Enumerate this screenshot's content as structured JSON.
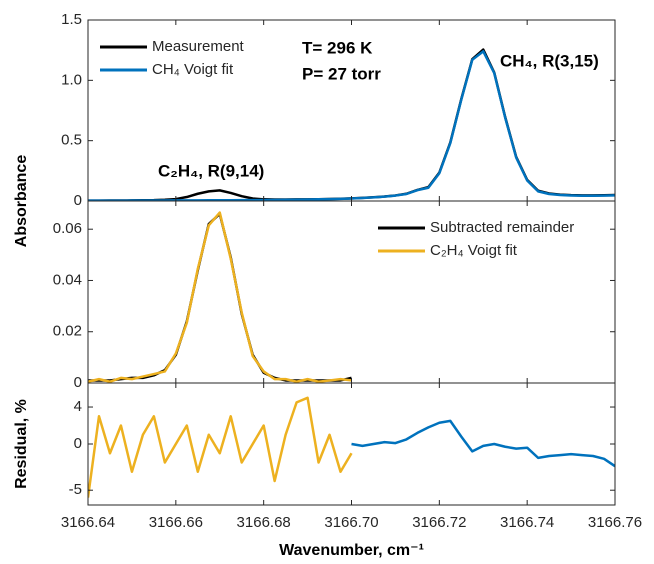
{
  "chart_data": [
    {
      "type": "line",
      "y_label": "Absorbance",
      "legend": "upper left",
      "annotations": [
        "T= 296 K",
        "P= 27 torr",
        "CH₄, R(3,15)",
        "C₂H₄, R(9,14)"
      ],
      "xlim": [
        3166.64,
        3166.76
      ],
      "ylim": [
        0,
        1.5
      ],
      "yticks": [
        0,
        0.5,
        {
          "value": 1,
          "label": "1.0"
        },
        1.5
      ],
      "x": [
        3166.64,
        3166.6425,
        3166.645,
        3166.6475,
        3166.65,
        3166.6525,
        3166.655,
        3166.6575,
        3166.66,
        3166.6625,
        3166.665,
        3166.6675,
        3166.67,
        3166.6725,
        3166.675,
        3166.6775,
        3166.68,
        3166.6825,
        3166.685,
        3166.6875,
        3166.69,
        3166.6925,
        3166.695,
        3166.6975,
        3166.7,
        3166.7025,
        3166.705,
        3166.7075,
        3166.71,
        3166.7125,
        3166.715,
        3166.7175,
        3166.72,
        3166.7225,
        3166.725,
        3166.7275,
        3166.73,
        3166.7325,
        3166.735,
        3166.7375,
        3166.74,
        3166.7425,
        3166.745,
        3166.7475,
        3166.75,
        3166.7525,
        3166.755,
        3166.7575,
        3166.76
      ],
      "series": [
        {
          "name": "Measurement",
          "color": "#000000",
          "values": [
            0.003,
            0.003,
            0.004,
            0.004,
            0.005,
            0.006,
            0.007,
            0.01,
            0.016,
            0.033,
            0.06,
            0.08,
            0.088,
            0.067,
            0.04,
            0.021,
            0.014,
            0.012,
            0.012,
            0.013,
            0.013,
            0.015,
            0.017,
            0.019,
            0.022,
            0.026,
            0.031,
            0.037,
            0.046,
            0.06,
            0.092,
            0.115,
            0.235,
            0.485,
            0.845,
            1.175,
            1.255,
            1.065,
            0.695,
            0.365,
            0.175,
            0.085,
            0.062,
            0.053,
            0.049,
            0.047,
            0.047,
            0.048,
            0.05
          ]
        },
        {
          "name": "CH₄ Voigt fit",
          "color": "#0072bd",
          "values": [
            0.003,
            0.003,
            0.003,
            0.003,
            0.004,
            0.004,
            0.004,
            0.004,
            0.005,
            0.005,
            0.005,
            0.006,
            0.006,
            0.006,
            0.007,
            0.007,
            0.008,
            0.009,
            0.01,
            0.011,
            0.012,
            0.014,
            0.016,
            0.018,
            0.021,
            0.025,
            0.03,
            0.036,
            0.045,
            0.058,
            0.09,
            0.11,
            0.23,
            0.48,
            0.84,
            1.17,
            1.24,
            1.06,
            0.69,
            0.36,
            0.17,
            0.08,
            0.058,
            0.05,
            0.046,
            0.044,
            0.044,
            0.045,
            0.047
          ]
        }
      ]
    },
    {
      "type": "line",
      "legend": "upper right",
      "xlim": [
        3166.64,
        3166.76
      ],
      "ylim": [
        0,
        0.071
      ],
      "yticks": [
        0,
        0.02,
        0.04,
        0.06
      ],
      "x": [
        3166.64,
        3166.6425,
        3166.645,
        3166.6475,
        3166.65,
        3166.6525,
        3166.655,
        3166.6575,
        3166.66,
        3166.6625,
        3166.665,
        3166.6675,
        3166.67,
        3166.6725,
        3166.675,
        3166.6775,
        3166.68,
        3166.6825,
        3166.685,
        3166.6875,
        3166.69,
        3166.6925,
        3166.695,
        3166.6975,
        3166.7
      ],
      "series": [
        {
          "name": "Subtracted remainder",
          "color": "#000000",
          "values": [
            0.001,
            0.001,
            0.001,
            0.0015,
            0.002,
            0.002,
            0.003,
            0.005,
            0.011,
            0.024,
            0.044,
            0.062,
            0.066,
            0.049,
            0.027,
            0.011,
            0.004,
            0.002,
            0.001,
            0.001,
            0.001,
            0.001,
            0.001,
            0.001,
            0.002
          ]
        },
        {
          "name": "C₂H₄ Voigt fit",
          "color": "#edb120",
          "values": [
            0.0005,
            0.0015,
            0.0005,
            0.002,
            0.0015,
            0.0025,
            0.0035,
            0.0045,
            0.0115,
            0.0235,
            0.0445,
            0.0615,
            0.0665,
            0.0485,
            0.0275,
            0.0105,
            0.0045,
            0.0015,
            0.0015,
            0.0005,
            0.0015,
            0.0005,
            0.001,
            0.0015,
            0.001
          ]
        }
      ]
    },
    {
      "type": "line",
      "y_label": "Residual, %",
      "x_label": "Wavenumber, cm⁻¹",
      "xlim": [
        3166.64,
        3166.76
      ],
      "ylim": [
        -6.6,
        6.6
      ],
      "xticks": [
        3166.64,
        3166.66,
        3166.68,
        {
          "value": 3166.7,
          "label": "3166.70"
        },
        3166.72,
        3166.74,
        3166.76
      ],
      "yticks": [
        -5,
        0,
        4
      ],
      "series": [
        {
          "color": "#edb120",
          "x": [
            3166.64,
            3166.6425,
            3166.645,
            3166.6475,
            3166.65,
            3166.6525,
            3166.655,
            3166.6575,
            3166.66,
            3166.6625,
            3166.665,
            3166.6675,
            3166.67,
            3166.6725,
            3166.675,
            3166.6775,
            3166.68,
            3166.6825,
            3166.685,
            3166.6875,
            3166.69,
            3166.6925,
            3166.695,
            3166.6975,
            3166.7
          ],
          "values": [
            -5.8,
            3,
            -1,
            2,
            -3,
            1,
            3,
            -2,
            0,
            2,
            -3,
            1,
            -1,
            3,
            -2,
            0,
            2,
            -4,
            1,
            4.5,
            5,
            -2,
            1,
            -3,
            -1
          ]
        },
        {
          "color": "#0072bd",
          "x": [
            3166.7,
            3166.7025,
            3166.705,
            3166.7075,
            3166.71,
            3166.7125,
            3166.715,
            3166.7175,
            3166.72,
            3166.7225,
            3166.725,
            3166.7275,
            3166.73,
            3166.7325,
            3166.735,
            3166.7375,
            3166.74,
            3166.7425,
            3166.745,
            3166.7475,
            3166.75,
            3166.7525,
            3166.755,
            3166.7575,
            3166.76
          ],
          "values": [
            0,
            -0.2,
            0,
            0.2,
            0.1,
            0.5,
            1.2,
            1.8,
            2.3,
            2.5,
            0.8,
            -0.8,
            -0.2,
            0,
            -0.3,
            -0.5,
            -0.4,
            -1.5,
            -1.3,
            -1.2,
            -1.1,
            -1.2,
            -1.3,
            -1.6,
            -2.4
          ]
        }
      ]
    }
  ]
}
